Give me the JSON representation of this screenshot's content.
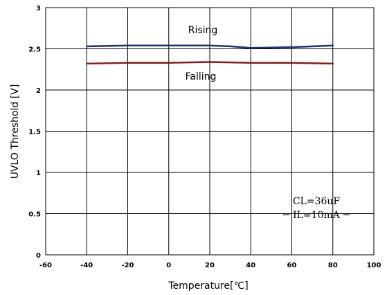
{
  "chart_data": {
    "type": "line",
    "xlabel": "Temperature[℃]",
    "ylabel": "UVLO Threshold [V]",
    "xlim": [
      -60,
      100
    ],
    "ylim": [
      0,
      3
    ],
    "xticks": [
      "-60",
      "-40",
      "-20",
      "0",
      "20",
      "40",
      "60",
      "80",
      "100"
    ],
    "yticks": [
      "0",
      "0.5",
      "1",
      "1.5",
      "2",
      "2.5",
      "3"
    ],
    "grid": true,
    "series": [
      {
        "name": "Rising",
        "color": "#1f2f7a",
        "x": [
          -40,
          -20,
          0,
          20,
          30,
          40,
          60,
          80
        ],
        "y": [
          2.53,
          2.54,
          2.54,
          2.54,
          2.53,
          2.51,
          2.52,
          2.54
        ]
      },
      {
        "name": "Falling",
        "color": "#8b1a1a",
        "x": [
          -40,
          -20,
          0,
          20,
          40,
          60,
          80
        ],
        "y": [
          2.32,
          2.33,
          2.33,
          2.34,
          2.33,
          2.33,
          2.32
        ]
      }
    ],
    "annotations": [
      "CL=36uF",
      "IL=10mA"
    ]
  }
}
